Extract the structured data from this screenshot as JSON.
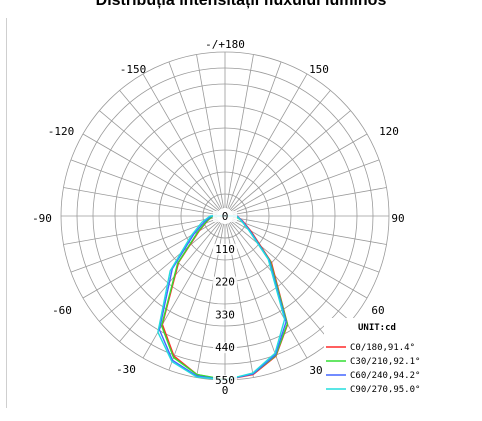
{
  "page": {
    "title": "Distribuția intensității fluxului luminos"
  },
  "chart_data": {
    "type": "polar",
    "title": "Distribuția intensității fluxului luminos",
    "unit_label": "UNIT:cd",
    "angle_ticks": [
      "-/+180",
      "-150",
      "150",
      "-120",
      "120",
      "-90",
      "90",
      "-60",
      "60",
      "-30",
      "30",
      "0"
    ],
    "radial_ticks": [
      "0",
      "110",
      "220",
      "330",
      "440",
      "550"
    ],
    "r_max": 550,
    "series": [
      {
        "name": "C0/180,91.4°",
        "color": "#ff2a2a",
        "theta": [
          -90,
          -75,
          -60,
          -45,
          -30,
          -20,
          -10,
          0,
          10,
          20,
          30,
          45,
          60,
          75,
          90
        ],
        "r": [
          40,
          60,
          100,
          220,
          420,
          500,
          540,
          550,
          540,
          500,
          420,
          220,
          100,
          60,
          40
        ]
      },
      {
        "name": "C30/210,92.1°",
        "color": "#33dd33",
        "theta": [
          -90,
          -75,
          -60,
          -45,
          -30,
          -20,
          -10,
          0,
          10,
          20,
          30,
          45,
          60,
          75,
          90
        ],
        "r": [
          40,
          62,
          105,
          225,
          425,
          505,
          540,
          548,
          538,
          498,
          418,
          215,
          95,
          55,
          35
        ]
      },
      {
        "name": "C60/240,94.2°",
        "color": "#4466ff",
        "theta": [
          -90,
          -75,
          -60,
          -45,
          -30,
          -20,
          -10,
          0,
          10,
          20,
          30,
          45,
          60,
          75,
          90
        ],
        "r": [
          45,
          70,
          120,
          250,
          440,
          515,
          545,
          550,
          538,
          495,
          410,
          210,
          95,
          58,
          40
        ]
      },
      {
        "name": "C90/270,95.0°",
        "color": "#22dddd",
        "theta": [
          -90,
          -75,
          -60,
          -45,
          -30,
          -20,
          -10,
          0,
          10,
          20,
          30,
          45,
          60,
          75,
          90
        ],
        "r": [
          50,
          80,
          130,
          260,
          450,
          520,
          548,
          550,
          535,
          490,
          400,
          205,
          90,
          55,
          38
        ]
      }
    ]
  }
}
